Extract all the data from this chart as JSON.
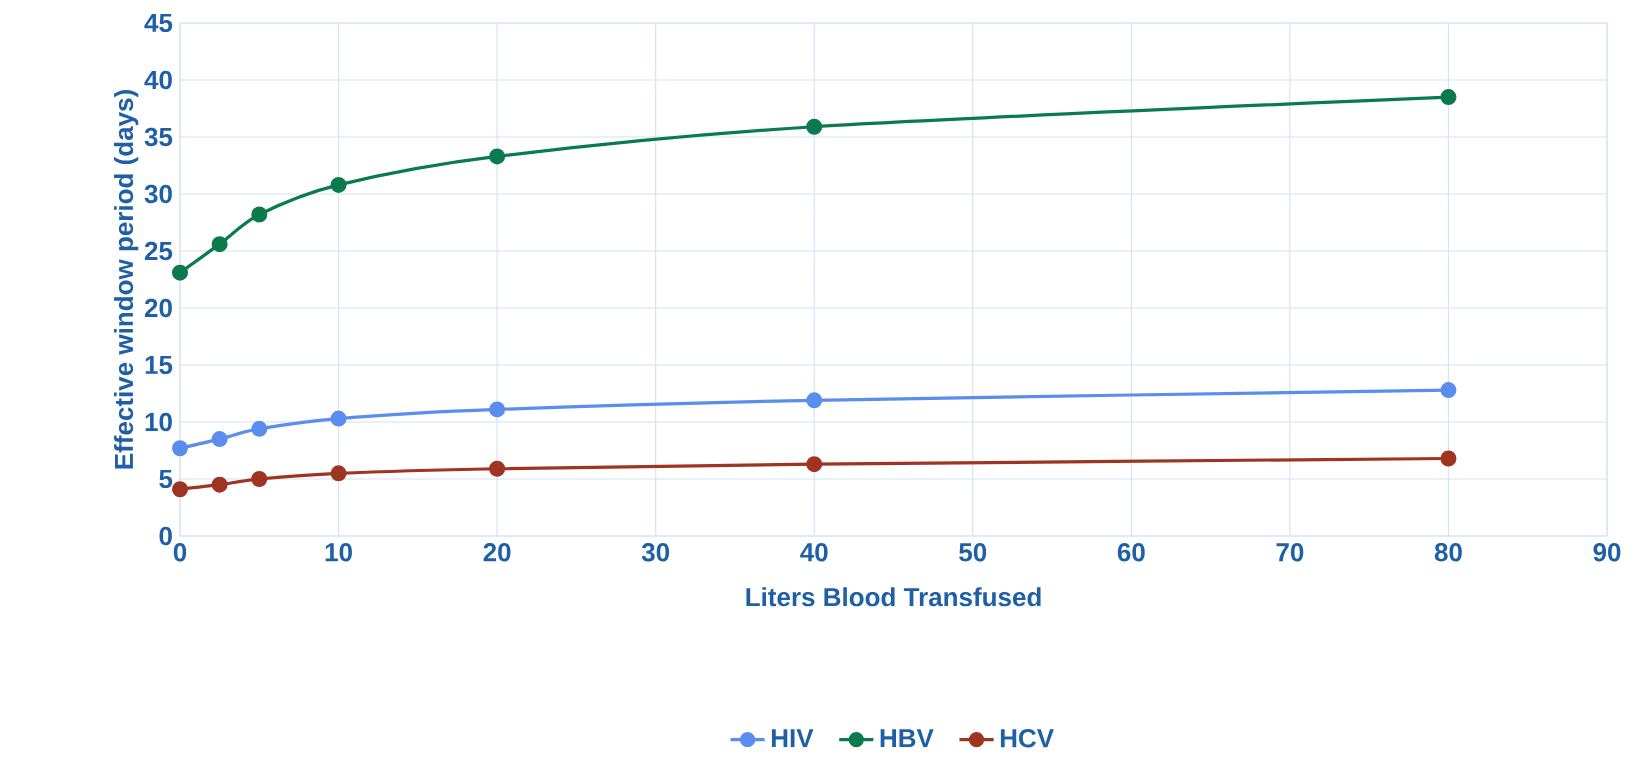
{
  "chart_data": {
    "type": "line",
    "xlabel": "Liters Blood Transfused",
    "ylabel": "Effective window period (days)",
    "x": [
      0,
      2.5,
      5,
      10,
      20,
      40,
      80
    ],
    "series": [
      {
        "name": "HIV",
        "color": "#5b8def",
        "values": [
          7.7,
          8.5,
          9.4,
          10.3,
          11.1,
          11.9,
          12.8
        ]
      },
      {
        "name": "HBV",
        "color": "#0b7a4f",
        "values": [
          23.1,
          25.6,
          28.2,
          30.8,
          33.3,
          35.9,
          38.5
        ]
      },
      {
        "name": "HCV",
        "color": "#9e3421",
        "values": [
          4.1,
          4.5,
          5.0,
          5.5,
          5.9,
          6.3,
          6.8
        ]
      }
    ],
    "xlim": [
      0,
      90
    ],
    "ylim": [
      0,
      45
    ],
    "xticks": [
      0,
      10,
      20,
      30,
      40,
      50,
      60,
      70,
      80,
      90
    ],
    "yticks": [
      0,
      5,
      10,
      15,
      20,
      25,
      30,
      35,
      40,
      45
    ],
    "grid": true,
    "legend": "bottom",
    "marker": "circle",
    "line_style": "solid"
  }
}
